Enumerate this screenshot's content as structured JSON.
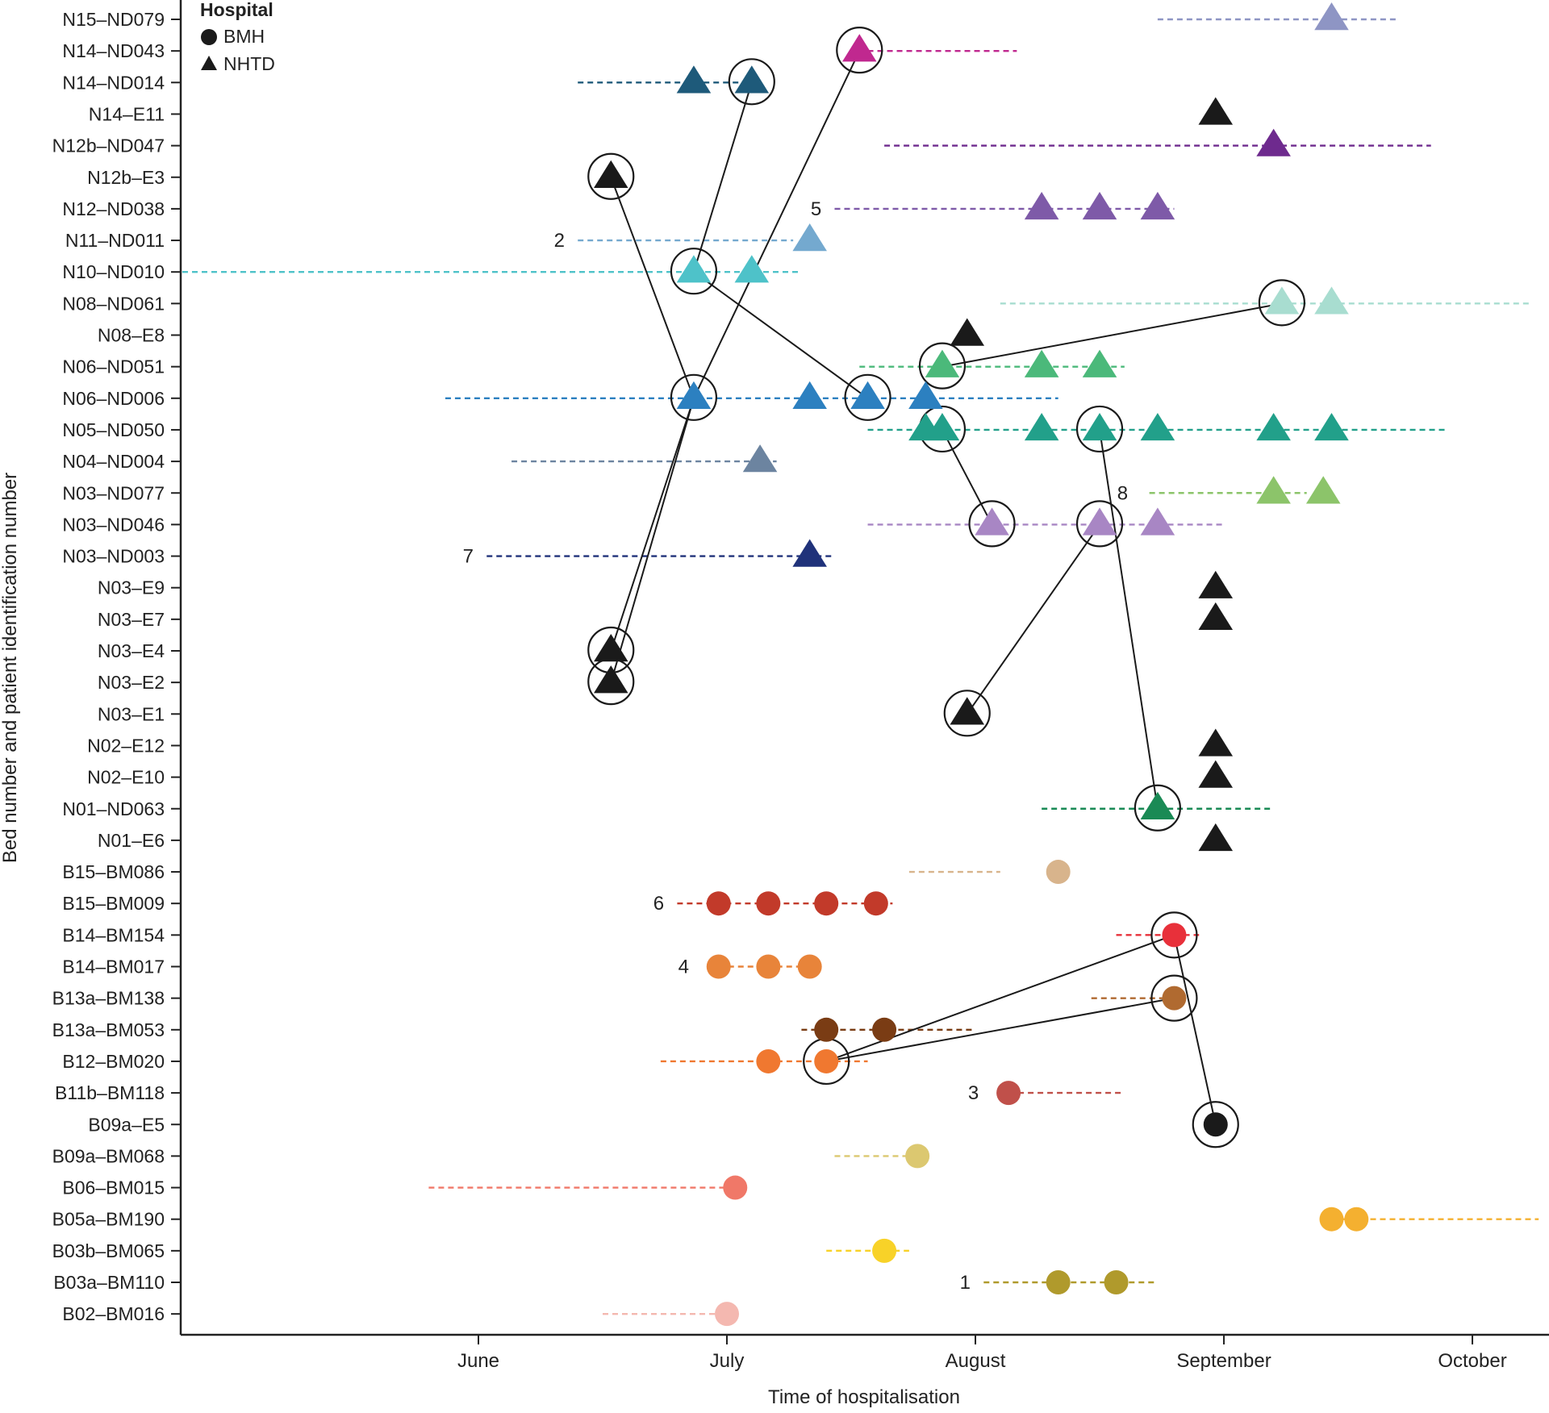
{
  "chart_data": {
    "type": "scatter",
    "title": "",
    "xlabel": "Time of hospitalisation",
    "ylabel": "Bed number and patient identification number",
    "x_unit": "days after 1 June",
    "xlim": [
      -36,
      128
    ],
    "x_ticks": [
      {
        "label": "June",
        "value": 0
      },
      {
        "label": "July",
        "value": 30
      },
      {
        "label": "August",
        "value": 60
      },
      {
        "label": "September",
        "value": 90
      },
      {
        "label": "October",
        "value": 120
      }
    ],
    "legend": {
      "title": "Hospital",
      "placement": "top-left",
      "entries": [
        {
          "label": "BMH",
          "marker": "circle"
        },
        {
          "label": "NHTD",
          "marker": "triangle"
        }
      ]
    },
    "patients": [
      {
        "id": "N15–ND079",
        "marker": "triangle",
        "color": "#8e95c4",
        "stay": [
          82,
          111
        ],
        "events": [
          103
        ]
      },
      {
        "id": "N14–ND043",
        "marker": "triangle",
        "color": "#c0288f",
        "stay": [
          47,
          65
        ],
        "events": [
          46
        ],
        "circled": [
          46
        ]
      },
      {
        "id": "N14–ND014",
        "marker": "triangle",
        "color": "#1e5a7a",
        "stay": [
          12,
          33
        ],
        "events": [
          26,
          33
        ],
        "circled": [
          33
        ]
      },
      {
        "id": "N14–E11",
        "marker": "triangle",
        "color": "#1a1a1a",
        "events": [
          89
        ]
      },
      {
        "id": "N12b–ND047",
        "marker": "triangle",
        "color": "#6e2a8e",
        "stay": [
          49,
          115
        ],
        "events": [
          96
        ]
      },
      {
        "id": "N12b–E3",
        "marker": "triangle",
        "color": "#1a1a1a",
        "events": [
          16
        ],
        "circled": [
          16
        ]
      },
      {
        "id": "N12–ND038",
        "marker": "triangle",
        "color": "#7e5aa8",
        "stay": [
          43,
          84
        ],
        "events": [
          68,
          75,
          82
        ]
      },
      {
        "id": "N11–ND011",
        "marker": "triangle",
        "color": "#74a9cf",
        "stay": [
          12,
          38
        ],
        "events": [
          40
        ]
      },
      {
        "id": "N10–ND010",
        "marker": "triangle",
        "color": "#4ec2c9",
        "stay": [
          -36,
          39
        ],
        "events": [
          26,
          33
        ],
        "circled": [
          26
        ]
      },
      {
        "id": "N08–ND061",
        "marker": "triangle",
        "color": "#a8ddd0",
        "stay": [
          63,
          127
        ],
        "events": [
          97,
          103
        ],
        "circled": [
          97
        ]
      },
      {
        "id": "N08–E8",
        "marker": "triangle",
        "color": "#1a1a1a",
        "events": [
          59
        ]
      },
      {
        "id": "N06–ND051",
        "marker": "triangle",
        "color": "#4bb97a",
        "stay": [
          46,
          78
        ],
        "events": [
          56,
          68,
          75
        ],
        "circled": [
          56
        ]
      },
      {
        "id": "N06–ND006",
        "marker": "triangle",
        "color": "#2c80c0",
        "stay": [
          -4,
          70
        ],
        "events": [
          26,
          40,
          47,
          54
        ],
        "circled": [
          26,
          47
        ]
      },
      {
        "id": "N05–ND050",
        "marker": "triangle",
        "color": "#22a08a",
        "stay": [
          47,
          117
        ],
        "events": [
          54,
          56,
          68,
          75,
          82,
          96,
          103
        ],
        "circled": [
          56,
          75
        ]
      },
      {
        "id": "N04–ND004",
        "marker": "triangle",
        "color": "#6c84a0",
        "stay": [
          4,
          36
        ],
        "events": [
          34
        ]
      },
      {
        "id": "N03–ND077",
        "marker": "triangle",
        "color": "#8cc46a",
        "stay": [
          81,
          100
        ],
        "events": [
          96,
          102
        ]
      },
      {
        "id": "N03–ND046",
        "marker": "triangle",
        "color": "#a886c4",
        "stay": [
          47,
          90
        ],
        "events": [
          62,
          75,
          82
        ],
        "circled": [
          62,
          75
        ]
      },
      {
        "id": "N03–ND003",
        "marker": "triangle",
        "color": "#20327a",
        "stay": [
          1,
          43
        ],
        "events": [
          40
        ]
      },
      {
        "id": "N03–E9",
        "marker": "triangle",
        "color": "#1a1a1a",
        "events": [
          89
        ]
      },
      {
        "id": "N03–E7",
        "marker": "triangle",
        "color": "#1a1a1a",
        "events": [
          89
        ]
      },
      {
        "id": "N03–E4",
        "marker": "triangle",
        "color": "#1a1a1a",
        "events": [
          16
        ],
        "circled": [
          16
        ]
      },
      {
        "id": "N03–E2",
        "marker": "triangle",
        "color": "#1a1a1a",
        "events": [
          16
        ],
        "circled": [
          16
        ]
      },
      {
        "id": "N03–E1",
        "marker": "triangle",
        "color": "#1a1a1a",
        "events": [
          59
        ],
        "circled": [
          59
        ]
      },
      {
        "id": "N02–E12",
        "marker": "triangle",
        "color": "#1a1a1a",
        "events": [
          89
        ]
      },
      {
        "id": "N02–E10",
        "marker": "triangle",
        "color": "#1a1a1a",
        "events": [
          89
        ]
      },
      {
        "id": "N01–ND063",
        "marker": "triangle",
        "color": "#1a8a55",
        "stay": [
          68,
          96
        ],
        "events": [
          82
        ],
        "circled": [
          82
        ]
      },
      {
        "id": "N01–E6",
        "marker": "triangle",
        "color": "#1a1a1a",
        "events": [
          89
        ]
      },
      {
        "id": "B15–BM086",
        "marker": "circle",
        "color": "#d8b48c",
        "stay": [
          52,
          63
        ],
        "events": [
          70
        ]
      },
      {
        "id": "B15–BM009",
        "marker": "circle",
        "color": "#c23a2a",
        "stay": [
          24,
          50
        ],
        "events": [
          29,
          35,
          42,
          48
        ]
      },
      {
        "id": "B14–BM154",
        "marker": "circle",
        "color": "#e8303a",
        "stay": [
          77,
          87
        ],
        "events": [
          84
        ],
        "circled": [
          84
        ]
      },
      {
        "id": "B14–BM017",
        "marker": "circle",
        "color": "#e8843a",
        "stay": [
          29,
          40
        ],
        "events": [
          29,
          35,
          40
        ]
      },
      {
        "id": "B13a–BM138",
        "marker": "circle",
        "color": "#b06a30",
        "stay": [
          74,
          84
        ],
        "events": [
          84
        ],
        "circled": [
          84
        ]
      },
      {
        "id": "B13a–BM053",
        "marker": "circle",
        "color": "#7a3c14",
        "stay": [
          39,
          60
        ],
        "events": [
          42,
          49
        ]
      },
      {
        "id": "B12–BM020",
        "marker": "circle",
        "color": "#f07830",
        "stay": [
          22,
          47
        ],
        "events": [
          35,
          42
        ],
        "circled": [
          42
        ]
      },
      {
        "id": "B11b–BM118",
        "marker": "circle",
        "color": "#c0504a",
        "stay": [
          64,
          78
        ],
        "events": [
          64
        ]
      },
      {
        "id": "B09a–E5",
        "marker": "circle",
        "color": "#1a1a1a",
        "events": [
          89
        ],
        "circled": [
          89
        ]
      },
      {
        "id": "B09a–BM068",
        "marker": "circle",
        "color": "#dcc870",
        "stay": [
          43,
          53
        ],
        "events": [
          53
        ]
      },
      {
        "id": "B06–BM015",
        "marker": "circle",
        "color": "#f07868",
        "stay": [
          -6,
          31
        ],
        "events": [
          31
        ]
      },
      {
        "id": "B05a–BM190",
        "marker": "circle",
        "color": "#f4b030",
        "stay": [
          103,
          128
        ],
        "events": [
          103,
          106
        ]
      },
      {
        "id": "B03b–BM065",
        "marker": "circle",
        "color": "#f8d228",
        "stay": [
          42,
          52
        ],
        "events": [
          49
        ]
      },
      {
        "id": "B03a–BM110",
        "marker": "circle",
        "color": "#b09a2c",
        "stay": [
          61,
          82
        ],
        "events": [
          70,
          77
        ]
      },
      {
        "id": "B02–BM016",
        "marker": "circle",
        "color": "#f4b8b0",
        "stay": [
          15,
          30
        ],
        "events": [
          30
        ]
      }
    ],
    "transmission_links": [
      [
        {
          "id": "N14–ND014",
          "x": 33
        },
        {
          "id": "N10–ND010",
          "x": 26
        }
      ],
      [
        {
          "id": "N10–ND010",
          "x": 26
        },
        {
          "id": "N06–ND006",
          "x": 47
        }
      ],
      [
        {
          "id": "N12b–E3",
          "x": 16
        },
        {
          "id": "N06–ND006",
          "x": 26
        }
      ],
      [
        {
          "id": "N14–ND043",
          "x": 46
        },
        {
          "id": "N06–ND006",
          "x": 26
        }
      ],
      [
        {
          "id": "N06–ND006",
          "x": 26
        },
        {
          "id": "N03–E4",
          "x": 16
        }
      ],
      [
        {
          "id": "N06–ND006",
          "x": 26
        },
        {
          "id": "N03–E2",
          "x": 16
        }
      ],
      [
        {
          "id": "N06–ND051",
          "x": 56
        },
        {
          "id": "N08–ND061",
          "x": 97
        }
      ],
      [
        {
          "id": "N05–ND050",
          "x": 56
        },
        {
          "id": "N03–ND046",
          "x": 62
        }
      ],
      [
        {
          "id": "N03–ND046",
          "x": 75
        },
        {
          "id": "N03–E1",
          "x": 59
        }
      ],
      [
        {
          "id": "N05–ND050",
          "x": 75
        },
        {
          "id": "N01–ND063",
          "x": 82
        }
      ],
      [
        {
          "id": "B12–BM020",
          "x": 42
        },
        {
          "id": "B14–BM154",
          "x": 84
        }
      ],
      [
        {
          "id": "B12–BM020",
          "x": 42
        },
        {
          "id": "B13a–BM138",
          "x": 84
        }
      ],
      [
        {
          "id": "B14–BM154",
          "x": 84
        },
        {
          "id": "B09a–E5",
          "x": 89
        }
      ]
    ],
    "cluster_labels": [
      {
        "label": "1",
        "row": "B03a–BM110",
        "x": 60
      },
      {
        "label": "2",
        "row": "N11–ND011",
        "x": 11
      },
      {
        "label": "3",
        "row": "B11b–BM118",
        "x": 61
      },
      {
        "label": "4",
        "row": "B14–BM017",
        "x": 26
      },
      {
        "label": "5",
        "row": "N12–ND038",
        "x": 42
      },
      {
        "label": "6",
        "row": "B15–BM009",
        "x": 23
      },
      {
        "label": "7",
        "row": "N03–ND003",
        "x": 0
      },
      {
        "label": "8",
        "row": "N03–ND077",
        "x": 79
      }
    ]
  }
}
